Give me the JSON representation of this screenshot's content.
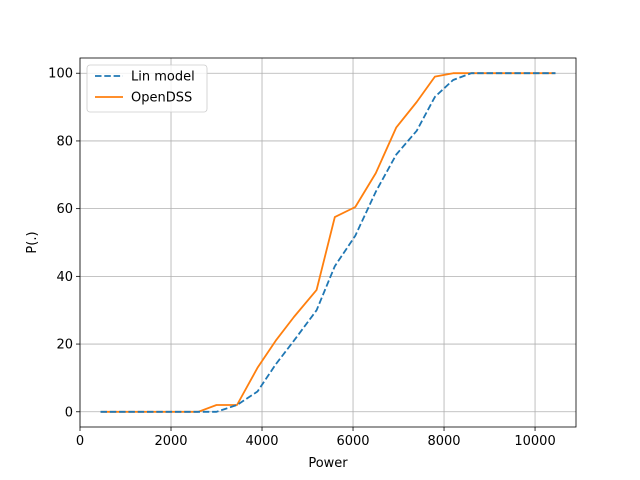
{
  "chart_data": {
    "type": "line",
    "title": "",
    "xlabel": "Power",
    "ylabel": "P(.)",
    "xlim": [
      0,
      10900
    ],
    "ylim": [
      -4.5,
      104.5
    ],
    "xticks": [
      0,
      2000,
      4000,
      6000,
      8000,
      10000
    ],
    "yticks": [
      0,
      20,
      40,
      60,
      80,
      100
    ],
    "grid": true,
    "legend_position": "top-left",
    "series": [
      {
        "name": "Lin model",
        "color": "#1f77b4",
        "dash": "dashed",
        "x": [
          450,
          2600,
          3000,
          3450,
          3900,
          4300,
          4700,
          5200,
          5600,
          6050,
          6500,
          6950,
          7400,
          7800,
          8200,
          8600,
          9000,
          9400,
          9800,
          10450
        ],
        "y": [
          0,
          0,
          0,
          2,
          6,
          14,
          21,
          30,
          43,
          52,
          65,
          76,
          83,
          93,
          98,
          100,
          100,
          100,
          100,
          100
        ]
      },
      {
        "name": "OpenDSS",
        "color": "#ff7f0e",
        "dash": "solid",
        "x": [
          450,
          2600,
          3000,
          3450,
          3900,
          4300,
          4700,
          5200,
          5600,
          6050,
          6500,
          6950,
          7400,
          7800,
          8200,
          8600,
          9000,
          9400,
          9800,
          10450
        ],
        "y": [
          0,
          0,
          2,
          2,
          13,
          21,
          28,
          36,
          57.5,
          60.5,
          70.5,
          84,
          91.5,
          99,
          100,
          100,
          100,
          100,
          100,
          100
        ]
      }
    ]
  }
}
